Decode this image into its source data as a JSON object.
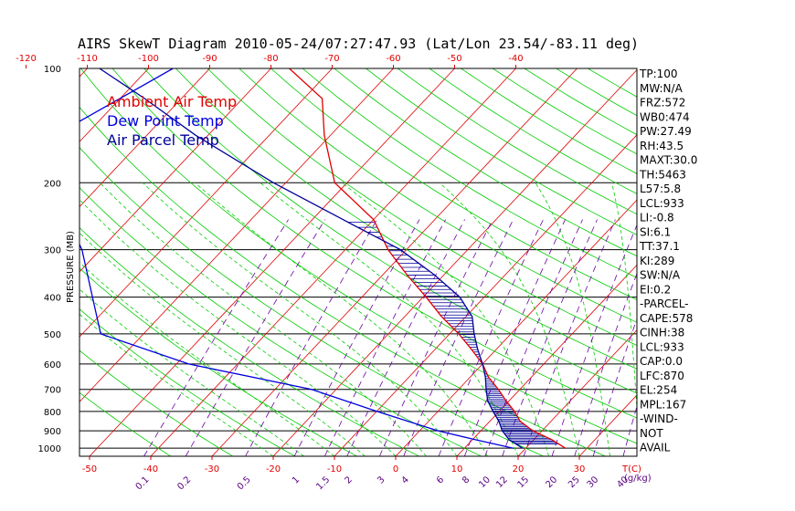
{
  "chart_data": {
    "type": "line",
    "title": "AIRS SkewT Diagram 2010-05-24/07:27:47.93 (Lat/Lon 23.54/-83.11 deg)",
    "ylabel": "PRESSURE (MB)",
    "xlabel": "T(C)",
    "mixing_label": "(g/kg)",
    "ylim": [
      1050,
      100
    ],
    "y_scale": "log",
    "pressure_ticks": [
      100,
      200,
      300,
      400,
      500,
      600,
      700,
      800,
      900,
      1000
    ],
    "bottom_temp_ticks": [
      -50,
      -40,
      -30,
      -20,
      -10,
      0,
      10,
      20,
      30
    ],
    "top_temp_ticks": [
      -120,
      -110,
      -100,
      -90,
      -80,
      -70,
      -60,
      -50,
      -40
    ],
    "mixing_ratio_ticks": [
      "0.1",
      "0.2",
      "0.5",
      "1",
      "1.5",
      "2",
      "3",
      "4",
      "6",
      "8",
      "10",
      "12",
      "15",
      "20",
      "25",
      "30",
      "40"
    ],
    "legend": [
      "Ambient Air Temp",
      "Dew Point Temp",
      "Air Parcel Temp"
    ],
    "series": [
      {
        "name": "Ambient Air Temp",
        "color": "#e00000",
        "points": [
          [
            100,
            -77
          ],
          [
            120,
            -67
          ],
          [
            150,
            -61
          ],
          [
            200,
            -52
          ],
          [
            250,
            -40
          ],
          [
            300,
            -33
          ],
          [
            350,
            -26
          ],
          [
            400,
            -19.5
          ],
          [
            450,
            -14
          ],
          [
            500,
            -8.5
          ],
          [
            550,
            -4
          ],
          [
            600,
            0
          ],
          [
            650,
            3
          ],
          [
            700,
            6.5
          ],
          [
            750,
            9.5
          ],
          [
            800,
            12.5
          ],
          [
            850,
            15
          ],
          [
            900,
            18.5
          ],
          [
            950,
            23
          ],
          [
            1000,
            26.5
          ]
        ]
      },
      {
        "name": "Dew Point Temp",
        "color": "#0000e0",
        "points": [
          [
            100,
            -96
          ],
          [
            150,
            -105
          ],
          [
            200,
            -100
          ],
          [
            250,
            -90
          ],
          [
            300,
            -83
          ],
          [
            400,
            -74
          ],
          [
            500,
            -67
          ],
          [
            600,
            -48
          ],
          [
            700,
            -24
          ],
          [
            800,
            -10
          ],
          [
            900,
            3
          ],
          [
            950,
            10.5
          ],
          [
            1000,
            18
          ]
        ]
      },
      {
        "name": "Air Parcel Temp",
        "color": "#00009a",
        "points": [
          [
            100,
            -108
          ],
          [
            120,
            -96
          ],
          [
            150,
            -82
          ],
          [
            200,
            -62
          ],
          [
            250,
            -45
          ],
          [
            300,
            -31
          ],
          [
            350,
            -21.5
          ],
          [
            400,
            -14
          ],
          [
            450,
            -9
          ],
          [
            500,
            -6
          ],
          [
            550,
            -3
          ],
          [
            600,
            0
          ],
          [
            650,
            2.5
          ],
          [
            700,
            4.5
          ],
          [
            750,
            6.5
          ],
          [
            800,
            9
          ],
          [
            850,
            11.5
          ],
          [
            900,
            13.5
          ],
          [
            950,
            16
          ],
          [
            1000,
            19.5
          ]
        ]
      }
    ],
    "stats": [
      "TP:100",
      "MW:N/A",
      "FRZ:572",
      "WB0:474",
      "PW:27.49",
      "RH:43.5",
      "MAXT:30.0",
      "TH:5463",
      "L57:5.8",
      "LCL:933",
      "LI:-0.8",
      "SI:6.1",
      "TT:37.1",
      "KI:289",
      "SW:N/A",
      "EI:0.2",
      "-PARCEL-",
      "CAPE:578",
      "CINH:38",
      "LCL:933",
      "CAP:0.0",
      "LFC:870",
      "EL:254",
      "MPL:167",
      "-WIND-",
      "NOT",
      "AVAIL"
    ],
    "colors": {
      "isotherm": "#e00000",
      "dry_adiabat": "#00cc00",
      "moist_adiabat": "#00cc00",
      "mixing_ratio": "#6a00a0",
      "top_axis": "#e00000",
      "bottom_axis": "#e00000",
      "mixing_axis": "#5a0080"
    },
    "grid": true
  }
}
